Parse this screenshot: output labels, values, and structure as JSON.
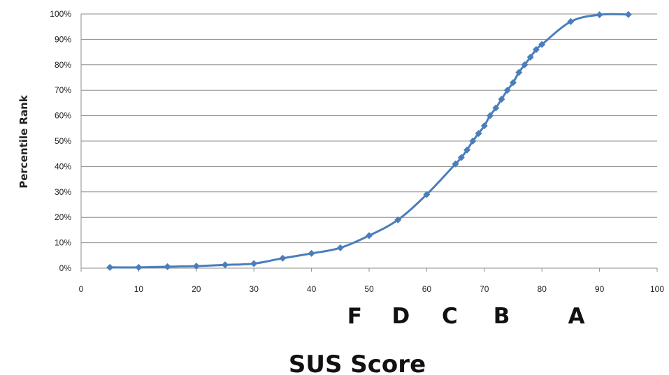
{
  "chart_data": {
    "type": "line",
    "title": "",
    "xlabel": "SUS Score",
    "ylabel": "Percentile Rank",
    "xlim": [
      0,
      100
    ],
    "ylim": [
      0,
      100
    ],
    "x_ticks": [
      "0",
      "10",
      "20",
      "30",
      "40",
      "50",
      "60",
      "70",
      "80",
      "90",
      "100"
    ],
    "y_ticks": [
      "0%",
      "10%",
      "20%",
      "30%",
      "40%",
      "50%",
      "60%",
      "70%",
      "80%",
      "90%",
      "100%"
    ],
    "grid": "horizontal",
    "legend": "none",
    "series": [
      {
        "color": "#4a7ebb",
        "marker": "diamond",
        "x": [
          5,
          10,
          15,
          20,
          25,
          30,
          35,
          40,
          45,
          50,
          55,
          60,
          65,
          66,
          67,
          68,
          69,
          70,
          71,
          72,
          73,
          74,
          75,
          76,
          77,
          78,
          79,
          80,
          85,
          90,
          95
        ],
        "y": [
          0.3,
          0.3,
          0.6,
          0.8,
          1.3,
          1.8,
          3.9,
          5.8,
          8,
          12.8,
          19,
          29,
          41,
          43.5,
          46.5,
          50,
          53,
          56,
          60,
          63,
          66.5,
          70,
          73,
          77,
          80,
          83,
          86,
          88,
          97,
          99.7,
          99.8
        ]
      }
    ],
    "grade_labels": [
      {
        "text": "F",
        "x": 47.5
      },
      {
        "text": "D",
        "x": 55.5
      },
      {
        "text": "C",
        "x": 64
      },
      {
        "text": "B",
        "x": 73
      },
      {
        "text": "A",
        "x": 86
      }
    ]
  }
}
